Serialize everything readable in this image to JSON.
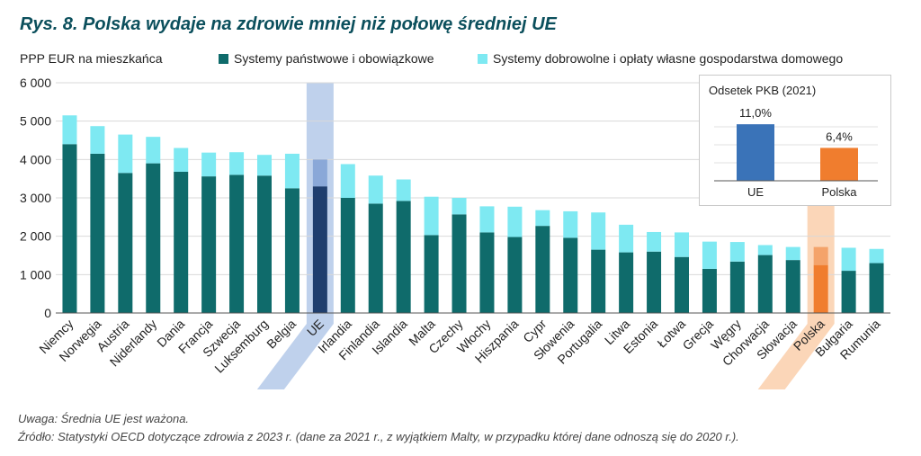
{
  "title": "Rys. 8. Polska wydaje na zdrowie mniej niż połowę średniej UE",
  "unit_label": "PPP EUR na mieszkańca",
  "colors": {
    "public": "#0f6b6b",
    "voluntary": "#7ee9f2",
    "eu_highlight": "#a9c2e6",
    "eu_public": "#1f3e6e",
    "eu_voluntary": "#8aa8d8",
    "pl_highlight": "#f9c8a0",
    "pl_public": "#f07d2e",
    "pl_voluntary": "#f4a36a",
    "inset_eu": "#3a73b8",
    "inset_pl": "#f07d2e",
    "title": "#0b4f5c"
  },
  "chart_data": [
    {
      "type": "bar",
      "stacked": true,
      "ylabel": "PPP EUR na mieszkańca",
      "ylim": [
        0,
        6000
      ],
      "yticks": [
        "0",
        "1 000",
        "2 000",
        "3 000",
        "4 000",
        "5 000",
        "6 000"
      ],
      "ytick_values": [
        0,
        1000,
        2000,
        3000,
        4000,
        5000,
        6000
      ],
      "grid": true,
      "legend_placement": "top",
      "highlighted_categories": [
        "UE",
        "Polska"
      ],
      "categories": [
        "Niemcy",
        "Norwegia",
        "Austria",
        "Niderlandy",
        "Dania",
        "Francja",
        "Szwecja",
        "Luksemburg",
        "Belgia",
        "UE",
        "Irlandia",
        "Finlandia",
        "Islandia",
        "Malta",
        "Czechy",
        "Włochy",
        "Hiszpania",
        "Cypr",
        "Słowenia",
        "Portugalia",
        "Litwa",
        "Estonia",
        "Łotwa",
        "Grecja",
        "Węgry",
        "Chorwacja",
        "Słowacja",
        "Polska",
        "Bułgaria",
        "Rumunia"
      ],
      "series": [
        {
          "name": "Systemy państwowe i obowiązkowe",
          "values": [
            4400,
            4150,
            3650,
            3900,
            3680,
            3560,
            3600,
            3580,
            3250,
            3300,
            3000,
            2850,
            2920,
            2030,
            2570,
            2100,
            1980,
            2270,
            1960,
            1650,
            1580,
            1600,
            1460,
            1150,
            1340,
            1510,
            1380,
            1250,
            1100,
            1300
          ]
        },
        {
          "name": "Systemy dobrowolne i opłaty własne gospodarstwa domowego",
          "values": [
            750,
            720,
            1000,
            690,
            620,
            620,
            590,
            540,
            900,
            700,
            880,
            730,
            560,
            1000,
            430,
            680,
            790,
            410,
            690,
            970,
            720,
            510,
            640,
            710,
            510,
            260,
            340,
            470,
            600,
            370
          ]
        }
      ]
    },
    {
      "type": "bar",
      "title": "Odsetek PKB (2021)",
      "categories": [
        "UE",
        "Polska"
      ],
      "values": [
        11.0,
        6.4
      ],
      "labels": [
        "11,0%",
        "6,4%"
      ],
      "ylim": [
        0,
        14
      ]
    }
  ],
  "notes": {
    "note": "Uwaga: Średnia UE jest ważona.",
    "source": "Źródło: Statystyki OECD dotyczące zdrowia z 2023 r. (dane za 2021 r., z wyjątkiem Malty, w przypadku której dane odnoszą się do 2020 r.)."
  }
}
